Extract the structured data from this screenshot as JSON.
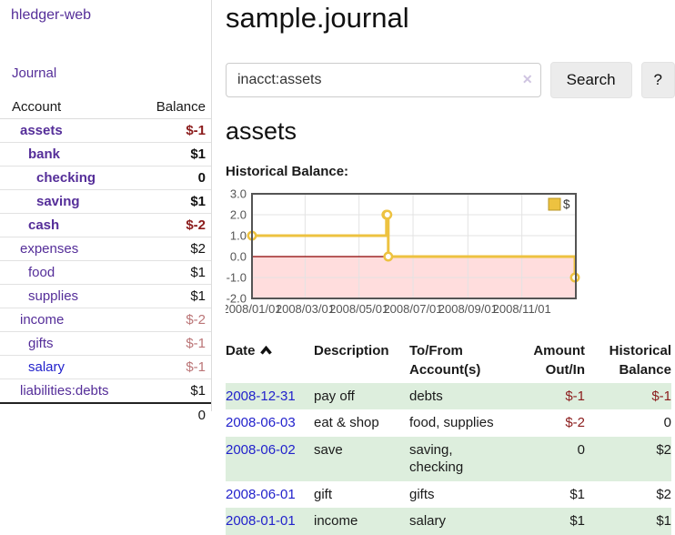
{
  "app": {
    "title": "hledger-web"
  },
  "colors": {
    "accent_purple": "#552e99",
    "link_blue": "#2222cc",
    "negative_strong": "#8b1c1c",
    "negative_soft": "#bb7577",
    "row_stripe_green": "#ddeedd",
    "series_yellow": "#edc240",
    "below_zero_pink": "#ffdddd",
    "zero_line_red": "#8b0000"
  },
  "sidebar": {
    "journal_label": "Journal",
    "accounts": {
      "header_account": "Account",
      "header_balance": "Balance",
      "rows": [
        {
          "name": "assets",
          "balance": "$-1",
          "indent": 1,
          "matched": true,
          "link": "purple",
          "balance_class": "neg-strong"
        },
        {
          "name": "bank",
          "balance": "$1",
          "indent": 2,
          "matched": true,
          "link": "purple",
          "balance_class": ""
        },
        {
          "name": "checking",
          "balance": "0",
          "indent": 3,
          "matched": true,
          "link": "purple",
          "balance_class": ""
        },
        {
          "name": "saving",
          "balance": "$1",
          "indent": 3,
          "matched": true,
          "link": "purple",
          "balance_class": ""
        },
        {
          "name": "cash",
          "balance": "$-2",
          "indent": 2,
          "matched": true,
          "link": "purple",
          "balance_class": "neg-strong"
        },
        {
          "name": "expenses",
          "balance": "$2",
          "indent": 1,
          "matched": false,
          "link": "purple",
          "balance_class": ""
        },
        {
          "name": "food",
          "balance": "$1",
          "indent": 2,
          "matched": false,
          "link": "purple",
          "balance_class": ""
        },
        {
          "name": "supplies",
          "balance": "$1",
          "indent": 2,
          "matched": false,
          "link": "purple",
          "balance_class": ""
        },
        {
          "name": "income",
          "balance": "$-2",
          "indent": 1,
          "matched": false,
          "link": "purple",
          "balance_class": "neg-soft"
        },
        {
          "name": "gifts",
          "balance": "$-1",
          "indent": 2,
          "matched": false,
          "link": "purple",
          "balance_class": "neg-soft"
        },
        {
          "name": "salary",
          "balance": "$-1",
          "indent": 2,
          "matched": false,
          "link": "blue",
          "balance_class": "neg-soft"
        },
        {
          "name": "liabilities:debts",
          "balance": "$1",
          "indent": 1,
          "matched": false,
          "link": "purple",
          "balance_class": ""
        }
      ],
      "total": "0"
    }
  },
  "main": {
    "title": "sample.journal",
    "search": {
      "value": "inacct:assets",
      "clear_icon": "✕",
      "button_label": "Search",
      "help_label": "?"
    },
    "account_heading": "assets",
    "chart_label": "Historical Balance:"
  },
  "chart_data": {
    "type": "line",
    "style": "step",
    "title": "Historical Balance",
    "legend_position": "top-right",
    "legend": [
      {
        "label": "$",
        "color": "#edc240"
      }
    ],
    "x_range": [
      "2008-01-01",
      "2009-01-01"
    ],
    "ylim": [
      -2,
      3
    ],
    "y_ticks": [
      {
        "label": "3.0",
        "value": 3
      },
      {
        "label": "2.0",
        "value": 2
      },
      {
        "label": "1.0",
        "value": 1
      },
      {
        "label": "0.0",
        "value": 0
      },
      {
        "label": "-1.0",
        "value": -1
      },
      {
        "label": "-2.0",
        "value": -2
      }
    ],
    "x_ticks": [
      {
        "label": "2008/01/01",
        "date": "2008-01-01"
      },
      {
        "label": "2008/03/01",
        "date": "2008-03-01"
      },
      {
        "label": "2008/05/01",
        "date": "2008-05-01"
      },
      {
        "label": "2008/07/01",
        "date": "2008-07-01"
      },
      {
        "label": "2008/09/01",
        "date": "2008-09-01"
      },
      {
        "label": "2008/11/01",
        "date": "2008-11-01"
      }
    ],
    "series": [
      {
        "name": "$",
        "color": "#edc240",
        "points": [
          {
            "date": "2008-01-01",
            "value": 1
          },
          {
            "date": "2008-06-01",
            "value": 2
          },
          {
            "date": "2008-06-02",
            "value": 2
          },
          {
            "date": "2008-06-03",
            "value": 0
          },
          {
            "date": "2008-12-31",
            "value": -1
          }
        ]
      }
    ],
    "grid": true,
    "below_zero_fill": "#ffdddd",
    "zero_line_color": "#8b0000"
  },
  "register": {
    "headers": {
      "date": "Date",
      "description": "Description",
      "account": "To/From Account(s)",
      "amount": "Amount Out/In",
      "balance": "Historical Balance"
    },
    "sort": {
      "column": "date",
      "direction": "ascending"
    },
    "rows": [
      {
        "date": "2008-12-31",
        "description": "pay off",
        "accounts": "debts",
        "amount": "$-1",
        "balance": "$-1",
        "shaded": true
      },
      {
        "date": "2008-06-03",
        "description": "eat & shop",
        "accounts": "food, supplies",
        "amount": "$-2",
        "balance": "0",
        "shaded": false
      },
      {
        "date": "2008-06-02",
        "description": "save",
        "accounts": "saving, checking",
        "amount": "0",
        "balance": "$2",
        "shaded": true
      },
      {
        "date": "2008-06-01",
        "description": "gift",
        "accounts": "gifts",
        "amount": "$1",
        "balance": "$2",
        "shaded": false
      },
      {
        "date": "2008-01-01",
        "description": "income",
        "accounts": "salary",
        "amount": "$1",
        "balance": "$1",
        "shaded": true
      }
    ]
  }
}
